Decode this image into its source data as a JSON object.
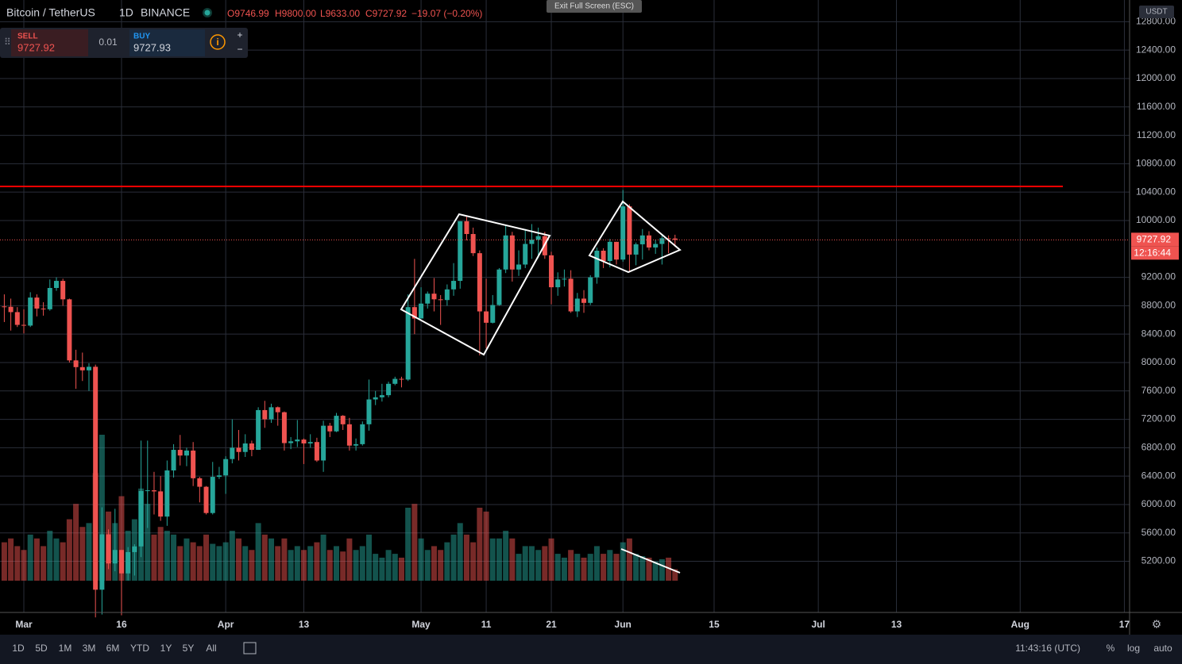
{
  "header": {
    "symbol": "Bitcoin / TetherUS",
    "interval": "1D",
    "exchange": "BINANCE",
    "ohlc": [
      {
        "label": "O",
        "value": "9746.99"
      },
      {
        "label": "H",
        "value": "9800.00"
      },
      {
        "label": "L",
        "value": "9633.00"
      },
      {
        "label": "C",
        "value": "9727.92"
      }
    ],
    "change": "−19.07 (−0.20%)",
    "fullscreen": "Exit Full Screen (ESC)"
  },
  "trade_panel": {
    "sell_label": "SELL",
    "sell_price": "9727.92",
    "quantity": "0.01",
    "buy_label": "BUY",
    "buy_price": "9727.93"
  },
  "price_axis": {
    "currency": "USDT",
    "last_price": "9727.92",
    "countdown": "12:16:44"
  },
  "toolbar": {
    "ranges": [
      "1D",
      "5D",
      "1M",
      "3M",
      "6M",
      "YTD",
      "1Y",
      "5Y",
      "All"
    ],
    "clock": "11:43:16 (UTC)",
    "percent": "%",
    "log": "log",
    "auto": "auto"
  },
  "chart_data": {
    "type": "candlestick",
    "up_color": "#26a69a",
    "down_color": "#ef5350",
    "xlim": [
      -0.66,
      172.8
    ],
    "ylim": [
      4480,
      13106
    ],
    "xticks": [
      {
        "value": 3,
        "label": "Mar"
      },
      {
        "value": 18,
        "label": "16"
      },
      {
        "value": 34,
        "label": "Apr"
      },
      {
        "value": 46,
        "label": "13"
      },
      {
        "value": 64,
        "label": "May"
      },
      {
        "value": 74,
        "label": "11"
      },
      {
        "value": 84,
        "label": "21"
      },
      {
        "value": 95,
        "label": "Jun"
      },
      {
        "value": 109,
        "label": "15"
      },
      {
        "value": 125,
        "label": "Jul"
      },
      {
        "value": 137,
        "label": "13"
      },
      {
        "value": 156,
        "label": "Aug"
      },
      {
        "value": 172,
        "label": "17"
      }
    ],
    "yticks": [
      {
        "value": 5200,
        "label": "5200.00"
      },
      {
        "value": 5600,
        "label": "5600.00"
      },
      {
        "value": 6000,
        "label": "6000.00"
      },
      {
        "value": 6400,
        "label": "6400.00"
      },
      {
        "value": 6800,
        "label": "6800.00"
      },
      {
        "value": 7200,
        "label": "7200.00"
      },
      {
        "value": 7600,
        "label": "7600.00"
      },
      {
        "value": 8000,
        "label": "8000.00"
      },
      {
        "value": 8400,
        "label": "8400.00"
      },
      {
        "value": 8800,
        "label": "8800.00"
      },
      {
        "value": 9200,
        "label": "9200.00"
      },
      {
        "value": 10000,
        "label": "10000.00"
      },
      {
        "value": 10400,
        "label": "10400.00"
      },
      {
        "value": 10800,
        "label": "10800.00"
      },
      {
        "value": 11200,
        "label": "11200.00"
      },
      {
        "value": 11600,
        "label": "11600.00"
      },
      {
        "value": 12000,
        "label": "12000.00"
      },
      {
        "value": 12400,
        "label": "12400.00"
      },
      {
        "value": 12800,
        "label": "12800.00"
      }
    ],
    "grid": true,
    "levels": [
      {
        "value": 10480,
        "color": "#ff0000"
      }
    ],
    "candles": [
      [
        8790,
        8960,
        8570,
        8785
      ],
      [
        8785,
        8900,
        8450,
        8710
      ],
      [
        8710,
        8780,
        8500,
        8530
      ],
      [
        8530,
        8750,
        8410,
        8520
      ],
      [
        8520,
        8990,
        8500,
        8915
      ],
      [
        8915,
        8960,
        8650,
        8760
      ],
      [
        8760,
        8850,
        8660,
        8750
      ],
      [
        8750,
        9170,
        8730,
        9050
      ],
      [
        9050,
        9200,
        9010,
        9150
      ],
      [
        9150,
        9180,
        8800,
        8890
      ],
      [
        8890,
        8900,
        8000,
        8030
      ],
      [
        8030,
        8180,
        7630,
        7935
      ],
      [
        7935,
        8140,
        7740,
        7890
      ],
      [
        7890,
        7990,
        7600,
        7940
      ],
      [
        7940,
        7970,
        4410,
        4800
      ],
      [
        4800,
        5960,
        4450,
        5580
      ],
      [
        5580,
        5650,
        5090,
        5170
      ],
      [
        5170,
        5940,
        5060,
        5360
      ],
      [
        5360,
        5360,
        4440,
        5030
      ],
      [
        5030,
        5400,
        4930,
        5330
      ],
      [
        5330,
        5440,
        5000,
        5410
      ],
      [
        5410,
        6900,
        5260,
        6190
      ],
      [
        6190,
        6900,
        5670,
        6200
      ],
      [
        6200,
        6460,
        5860,
        6185
      ],
      [
        6185,
        6400,
        5770,
        5830
      ],
      [
        5830,
        6620,
        5700,
        6480
      ],
      [
        6480,
        6850,
        6380,
        6770
      ],
      [
        6770,
        6980,
        6550,
        6690
      ],
      [
        6690,
        6800,
        6540,
        6760
      ],
      [
        6760,
        6880,
        6260,
        6370
      ],
      [
        6370,
        6390,
        6030,
        6250
      ],
      [
        6250,
        6260,
        5860,
        5880
      ],
      [
        5880,
        6600,
        5860,
        6390
      ],
      [
        6390,
        6530,
        6360,
        6410
      ],
      [
        6410,
        6680,
        6150,
        6640
      ],
      [
        6640,
        7200,
        6580,
        6800
      ],
      [
        6800,
        7050,
        6620,
        6740
      ],
      [
        6740,
        6990,
        6670,
        6860
      ],
      [
        6860,
        6900,
        6680,
        6770
      ],
      [
        6770,
        7370,
        6770,
        7330
      ],
      [
        7330,
        7460,
        7080,
        7200
      ],
      [
        7200,
        7420,
        7150,
        7370
      ],
      [
        7370,
        7380,
        7110,
        7300
      ],
      [
        7300,
        7310,
        6760,
        6865
      ],
      [
        6865,
        6950,
        6780,
        6890
      ],
      [
        6890,
        7190,
        6810,
        6915
      ],
      [
        6915,
        6930,
        6570,
        6860
      ],
      [
        6860,
        6990,
        6800,
        6880
      ],
      [
        6880,
        6940,
        6600,
        6620
      ],
      [
        6620,
        7180,
        6460,
        7110
      ],
      [
        7110,
        7150,
        6950,
        7030
      ],
      [
        7030,
        7290,
        7020,
        7250
      ],
      [
        7250,
        7260,
        7050,
        7130
      ],
      [
        7130,
        7220,
        6760,
        6830
      ],
      [
        6830,
        6930,
        6760,
        6850
      ],
      [
        6850,
        7170,
        6830,
        7130
      ],
      [
        7130,
        7760,
        7040,
        7480
      ],
      [
        7480,
        7600,
        7400,
        7510
      ],
      [
        7510,
        7700,
        7450,
        7540
      ],
      [
        7540,
        7730,
        7510,
        7700
      ],
      [
        7700,
        7800,
        7680,
        7770
      ],
      [
        7770,
        7800,
        7650,
        7760
      ],
      [
        7760,
        8960,
        7740,
        8780
      ],
      [
        8780,
        9460,
        8400,
        8620
      ],
      [
        8620,
        9060,
        8620,
        8830
      ],
      [
        8830,
        9000,
        8760,
        8970
      ],
      [
        8970,
        9190,
        8720,
        8890
      ],
      [
        8890,
        8950,
        8530,
        8880
      ],
      [
        8880,
        9100,
        8800,
        9030
      ],
      [
        9030,
        9400,
        8940,
        9150
      ],
      [
        9150,
        9990,
        9040,
        9990
      ],
      [
        9990,
        10070,
        9720,
        9810
      ],
      [
        9810,
        9900,
        9500,
        9540
      ],
      [
        9540,
        9580,
        8100,
        8720
      ],
      [
        8720,
        9180,
        8200,
        8560
      ],
      [
        8560,
        8950,
        8550,
        8810
      ],
      [
        8810,
        9330,
        8800,
        9310
      ],
      [
        9310,
        9930,
        9260,
        9790
      ],
      [
        9790,
        9840,
        9140,
        9310
      ],
      [
        9310,
        9580,
        9220,
        9380
      ],
      [
        9380,
        9880,
        9330,
        9670
      ],
      [
        9670,
        9950,
        9460,
        9730
      ],
      [
        9730,
        9900,
        9470,
        9780
      ],
      [
        9780,
        9840,
        9460,
        9510
      ],
      [
        9510,
        9560,
        8820,
        9060
      ],
      [
        9060,
        9270,
        8940,
        9170
      ],
      [
        9170,
        9310,
        9070,
        9180
      ],
      [
        9180,
        9300,
        8700,
        8720
      ],
      [
        8720,
        8980,
        8640,
        8900
      ],
      [
        8900,
        9020,
        8700,
        8840
      ],
      [
        8840,
        9230,
        8810,
        9200
      ],
      [
        9200,
        9620,
        9110,
        9575
      ],
      [
        9575,
        9610,
        9330,
        9430
      ],
      [
        9430,
        9740,
        9340,
        9700
      ],
      [
        9700,
        9700,
        9380,
        9450
      ],
      [
        9450,
        10430,
        9420,
        10200
      ],
      [
        10200,
        10230,
        9270,
        9520
      ],
      [
        9520,
        9690,
        9370,
        9665
      ],
      [
        9665,
        9880,
        9450,
        9790
      ],
      [
        9790,
        9850,
        9580,
        9620
      ],
      [
        9620,
        9730,
        9530,
        9670
      ],
      [
        9670,
        9800,
        9380,
        9750
      ],
      [
        9750,
        9790,
        9540,
        9747
      ],
      [
        9746.99,
        9800,
        9633,
        9727.92
      ]
    ],
    "volume": [
      50,
      55,
      45,
      40,
      60,
      55,
      45,
      65,
      55,
      50,
      80,
      100,
      70,
      75,
      140,
      190,
      90,
      75,
      110,
      65,
      80,
      120,
      100,
      60,
      70,
      65,
      60,
      45,
      55,
      50,
      45,
      60,
      48,
      45,
      50,
      65,
      55,
      45,
      40,
      75,
      60,
      55,
      45,
      55,
      40,
      45,
      40,
      45,
      50,
      60,
      40,
      45,
      38,
      55,
      40,
      45,
      60,
      35,
      30,
      40,
      35,
      30,
      95,
      100,
      55,
      40,
      45,
      40,
      50,
      60,
      75,
      60,
      50,
      95,
      90,
      55,
      55,
      65,
      55,
      35,
      45,
      45,
      40,
      45,
      55,
      35,
      30,
      40,
      35,
      30,
      35,
      45,
      35,
      40,
      35,
      50,
      55,
      35,
      32,
      30,
      25,
      28,
      30,
      15
    ]
  }
}
